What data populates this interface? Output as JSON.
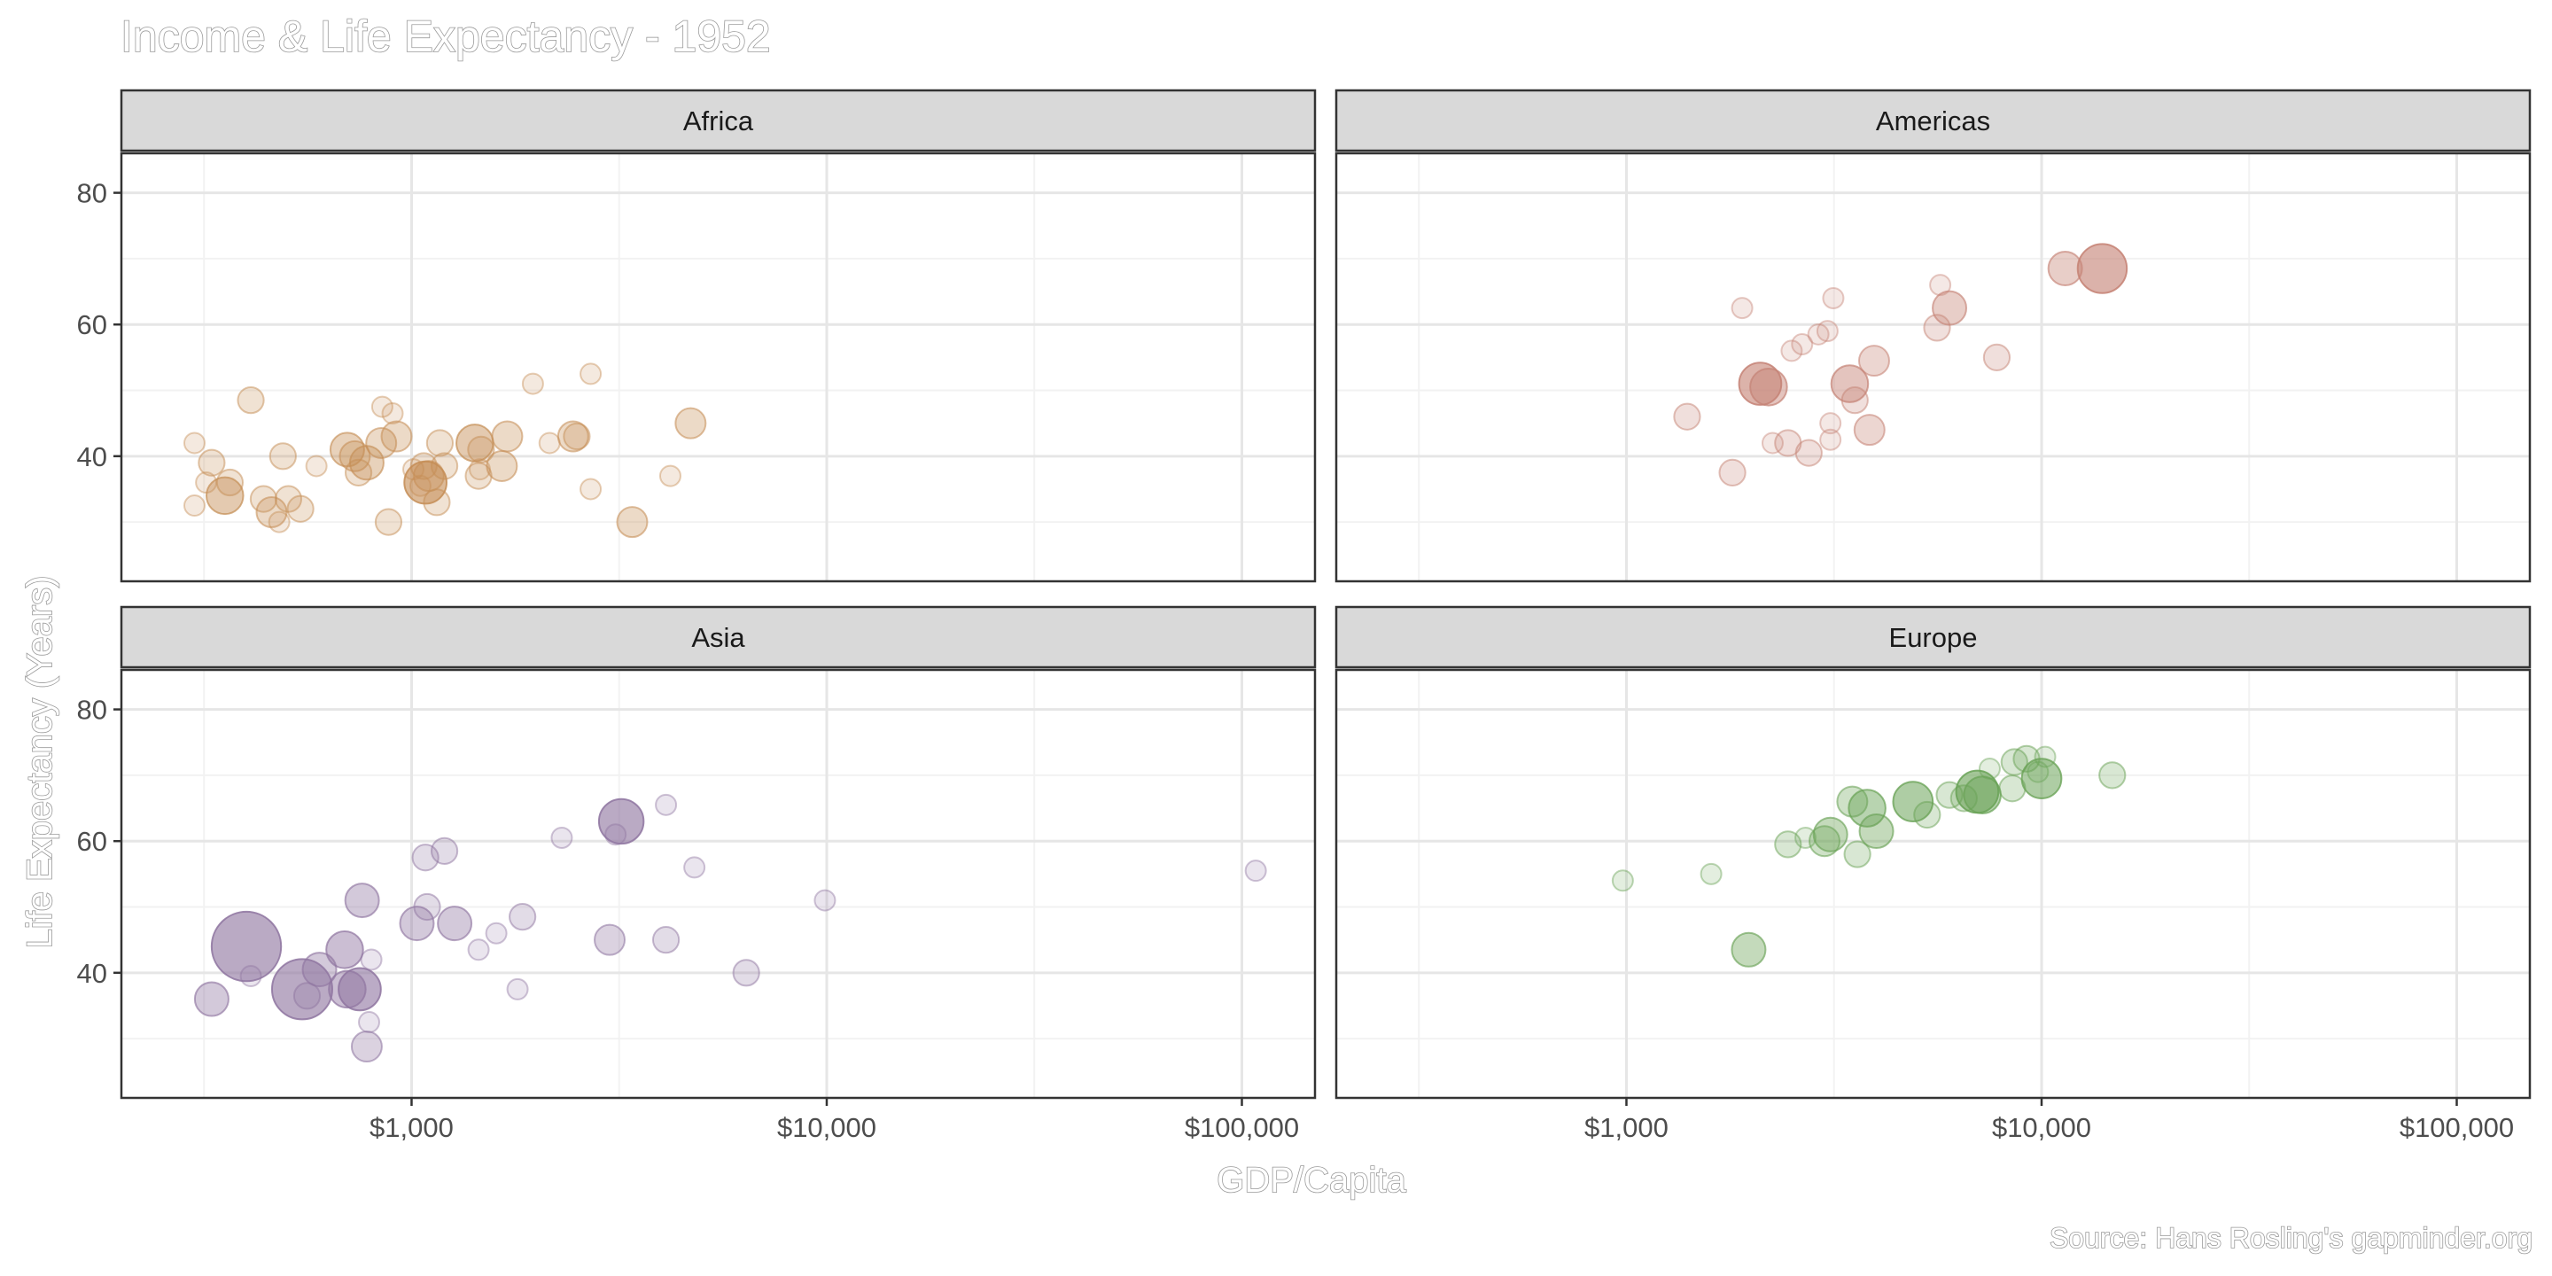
{
  "chart_data": {
    "type": "scatter",
    "title": "Income & Life Expectancy - 1952",
    "xlabel": "GDP/Capita",
    "ylabel": "Life Expectancy (Years)",
    "caption": "Source: Hans Rosling's gapminder.org",
    "x_scale": "log10",
    "xlim": [
      200,
      150000
    ],
    "ylim": [
      21,
      86
    ],
    "x_ticks": [
      {
        "value": 1000,
        "label": "$1,000"
      },
      {
        "value": 10000,
        "label": "$10,000"
      },
      {
        "value": 100000,
        "label": "$100,000"
      }
    ],
    "y_ticks": [
      {
        "value": 40,
        "label": "40"
      },
      {
        "value": 60,
        "label": "60"
      },
      {
        "value": 80,
        "label": "80"
      }
    ],
    "grid": true,
    "legend": "none",
    "size_encodes": "population",
    "opacity_encodes": "population",
    "panels": [
      {
        "name": "Africa",
        "color": "#e8a765",
        "points": [
          {
            "x": 300,
            "y": 42.0,
            "s": 1
          },
          {
            "x": 320,
            "y": 36.0,
            "s": 1
          },
          {
            "x": 300,
            "y": 32.5,
            "s": 1
          },
          {
            "x": 330,
            "y": 39.0,
            "s": 2
          },
          {
            "x": 355,
            "y": 34.0,
            "s": 5
          },
          {
            "x": 365,
            "y": 36.0,
            "s": 2
          },
          {
            "x": 410,
            "y": 48.5,
            "s": 2
          },
          {
            "x": 440,
            "y": 33.5,
            "s": 2
          },
          {
            "x": 460,
            "y": 31.5,
            "s": 3
          },
          {
            "x": 480,
            "y": 30.0,
            "s": 1
          },
          {
            "x": 490,
            "y": 40.0,
            "s": 2
          },
          {
            "x": 505,
            "y": 33.5,
            "s": 2
          },
          {
            "x": 540,
            "y": 32.0,
            "s": 2
          },
          {
            "x": 590,
            "y": 38.5,
            "s": 1
          },
          {
            "x": 700,
            "y": 41.0,
            "s": 4
          },
          {
            "x": 730,
            "y": 40.0,
            "s": 3
          },
          {
            "x": 745,
            "y": 37.5,
            "s": 2
          },
          {
            "x": 780,
            "y": 39.0,
            "s": 4
          },
          {
            "x": 845,
            "y": 42.0,
            "s": 3
          },
          {
            "x": 850,
            "y": 47.5,
            "s": 1
          },
          {
            "x": 880,
            "y": 30.0,
            "s": 2
          },
          {
            "x": 900,
            "y": 46.5,
            "s": 1
          },
          {
            "x": 920,
            "y": 43.0,
            "s": 3
          },
          {
            "x": 1010,
            "y": 38.0,
            "s": 1
          },
          {
            "x": 1050,
            "y": 35.5,
            "s": 1
          },
          {
            "x": 1070,
            "y": 38.5,
            "s": 2
          },
          {
            "x": 1080,
            "y": 36.0,
            "s": 7
          },
          {
            "x": 1100,
            "y": 37.0,
            "s": 3
          },
          {
            "x": 1150,
            "y": 33.0,
            "s": 2
          },
          {
            "x": 1170,
            "y": 42.0,
            "s": 2
          },
          {
            "x": 1200,
            "y": 38.5,
            "s": 2
          },
          {
            "x": 1420,
            "y": 42.0,
            "s": 5
          },
          {
            "x": 1450,
            "y": 37.0,
            "s": 2
          },
          {
            "x": 1460,
            "y": 38.0,
            "s": 1
          },
          {
            "x": 1470,
            "y": 41.0,
            "s": 2
          },
          {
            "x": 1650,
            "y": 38.5,
            "s": 3
          },
          {
            "x": 1700,
            "y": 43.0,
            "s": 3
          },
          {
            "x": 1960,
            "y": 51.0,
            "s": 1
          },
          {
            "x": 2150,
            "y": 42.0,
            "s": 1
          },
          {
            "x": 2450,
            "y": 43.0,
            "s": 3
          },
          {
            "x": 2500,
            "y": 43.0,
            "s": 2
          },
          {
            "x": 2700,
            "y": 52.5,
            "s": 1
          },
          {
            "x": 2700,
            "y": 35.0,
            "s": 1
          },
          {
            "x": 3400,
            "y": 30.0,
            "s": 3
          },
          {
            "x": 4200,
            "y": 37.0,
            "s": 1
          },
          {
            "x": 4700,
            "y": 45.0,
            "s": 3
          }
        ]
      },
      {
        "name": "Americas",
        "color": "#e89a8a",
        "points": [
          {
            "x": 1400,
            "y": 46.0,
            "s": 2
          },
          {
            "x": 1800,
            "y": 37.5,
            "s": 2
          },
          {
            "x": 1900,
            "y": 62.5,
            "s": 1
          },
          {
            "x": 2100,
            "y": 51.0,
            "s": 7
          },
          {
            "x": 2200,
            "y": 50.5,
            "s": 5
          },
          {
            "x": 2250,
            "y": 42.0,
            "s": 1
          },
          {
            "x": 2450,
            "y": 42.0,
            "s": 2
          },
          {
            "x": 2500,
            "y": 56.0,
            "s": 1
          },
          {
            "x": 2650,
            "y": 57.0,
            "s": 1
          },
          {
            "x": 2750,
            "y": 40.5,
            "s": 2
          },
          {
            "x": 2900,
            "y": 58.5,
            "s": 1
          },
          {
            "x": 3050,
            "y": 59.0,
            "s": 1
          },
          {
            "x": 3100,
            "y": 45.0,
            "s": 1
          },
          {
            "x": 3100,
            "y": 42.5,
            "s": 1
          },
          {
            "x": 3150,
            "y": 64.0,
            "s": 1
          },
          {
            "x": 3450,
            "y": 51.0,
            "s": 5
          },
          {
            "x": 3550,
            "y": 48.5,
            "s": 2
          },
          {
            "x": 3850,
            "y": 44.0,
            "s": 3
          },
          {
            "x": 3950,
            "y": 54.5,
            "s": 3
          },
          {
            "x": 5600,
            "y": 59.5,
            "s": 2
          },
          {
            "x": 5700,
            "y": 66.0,
            "s": 1
          },
          {
            "x": 6000,
            "y": 62.5,
            "s": 4
          },
          {
            "x": 7800,
            "y": 55.0,
            "s": 2
          },
          {
            "x": 11400,
            "y": 68.5,
            "s": 4
          },
          {
            "x": 14000,
            "y": 68.5,
            "s": 10
          }
        ]
      },
      {
        "name": "Asia",
        "color": "#a98bbd",
        "points": [
          {
            "x": 330,
            "y": 36.0,
            "s": 4
          },
          {
            "x": 400,
            "y": 44.0,
            "s": 22
          },
          {
            "x": 410,
            "y": 39.5,
            "s": 1
          },
          {
            "x": 545,
            "y": 37.5,
            "s": 16
          },
          {
            "x": 560,
            "y": 36.5,
            "s": 2
          },
          {
            "x": 600,
            "y": 40.5,
            "s": 4
          },
          {
            "x": 690,
            "y": 43.5,
            "s": 5
          },
          {
            "x": 700,
            "y": 37.5,
            "s": 5
          },
          {
            "x": 750,
            "y": 37.5,
            "s": 7
          },
          {
            "x": 760,
            "y": 51.0,
            "s": 4
          },
          {
            "x": 780,
            "y": 28.8,
            "s": 3
          },
          {
            "x": 790,
            "y": 32.5,
            "s": 1
          },
          {
            "x": 800,
            "y": 42.0,
            "s": 1
          },
          {
            "x": 1030,
            "y": 47.5,
            "s": 4
          },
          {
            "x": 1080,
            "y": 57.5,
            "s": 2
          },
          {
            "x": 1090,
            "y": 50.0,
            "s": 2
          },
          {
            "x": 1200,
            "y": 58.5,
            "s": 2
          },
          {
            "x": 1270,
            "y": 47.5,
            "s": 4
          },
          {
            "x": 1450,
            "y": 43.5,
            "s": 1
          },
          {
            "x": 1600,
            "y": 46.0,
            "s": 1
          },
          {
            "x": 1800,
            "y": 37.5,
            "s": 1
          },
          {
            "x": 1850,
            "y": 48.5,
            "s": 2
          },
          {
            "x": 2300,
            "y": 60.5,
            "s": 1
          },
          {
            "x": 3000,
            "y": 45.0,
            "s": 3
          },
          {
            "x": 3100,
            "y": 61.0,
            "s": 1
          },
          {
            "x": 3200,
            "y": 63.0,
            "s": 8
          },
          {
            "x": 4100,
            "y": 45.0,
            "s": 2
          },
          {
            "x": 4100,
            "y": 65.5,
            "s": 1
          },
          {
            "x": 4800,
            "y": 56.0,
            "s": 1
          },
          {
            "x": 6400,
            "y": 40.0,
            "s": 2
          },
          {
            "x": 9900,
            "y": 51.0,
            "s": 1
          },
          {
            "x": 108000,
            "y": 55.5,
            "s": 1
          }
        ]
      },
      {
        "name": "Europe",
        "color": "#7cbf65",
        "points": [
          {
            "x": 980,
            "y": 54.0,
            "s": 1
          },
          {
            "x": 1600,
            "y": 55.0,
            "s": 1
          },
          {
            "x": 1970,
            "y": 43.5,
            "s": 4
          },
          {
            "x": 2450,
            "y": 59.5,
            "s": 2
          },
          {
            "x": 2700,
            "y": 60.5,
            "s": 1
          },
          {
            "x": 3000,
            "y": 60.0,
            "s": 3
          },
          {
            "x": 3100,
            "y": 61.0,
            "s": 4
          },
          {
            "x": 3500,
            "y": 66.0,
            "s": 3
          },
          {
            "x": 3600,
            "y": 58.0,
            "s": 2
          },
          {
            "x": 3800,
            "y": 65.0,
            "s": 5
          },
          {
            "x": 4000,
            "y": 61.5,
            "s": 4
          },
          {
            "x": 4900,
            "y": 66.0,
            "s": 6
          },
          {
            "x": 5300,
            "y": 64.0,
            "s": 2
          },
          {
            "x": 6000,
            "y": 67.0,
            "s": 2
          },
          {
            "x": 6500,
            "y": 66.5,
            "s": 2
          },
          {
            "x": 7000,
            "y": 67.5,
            "s": 7
          },
          {
            "x": 7200,
            "y": 67.0,
            "s": 5
          },
          {
            "x": 7500,
            "y": 71.0,
            "s": 1
          },
          {
            "x": 8500,
            "y": 68.0,
            "s": 2
          },
          {
            "x": 8600,
            "y": 72.0,
            "s": 2
          },
          {
            "x": 9200,
            "y": 72.5,
            "s": 2
          },
          {
            "x": 9800,
            "y": 70.5,
            "s": 1
          },
          {
            "x": 10000,
            "y": 69.5,
            "s": 6
          },
          {
            "x": 10200,
            "y": 72.8,
            "s": 1
          },
          {
            "x": 14800,
            "y": 70.0,
            "s": 2
          }
        ]
      }
    ]
  }
}
